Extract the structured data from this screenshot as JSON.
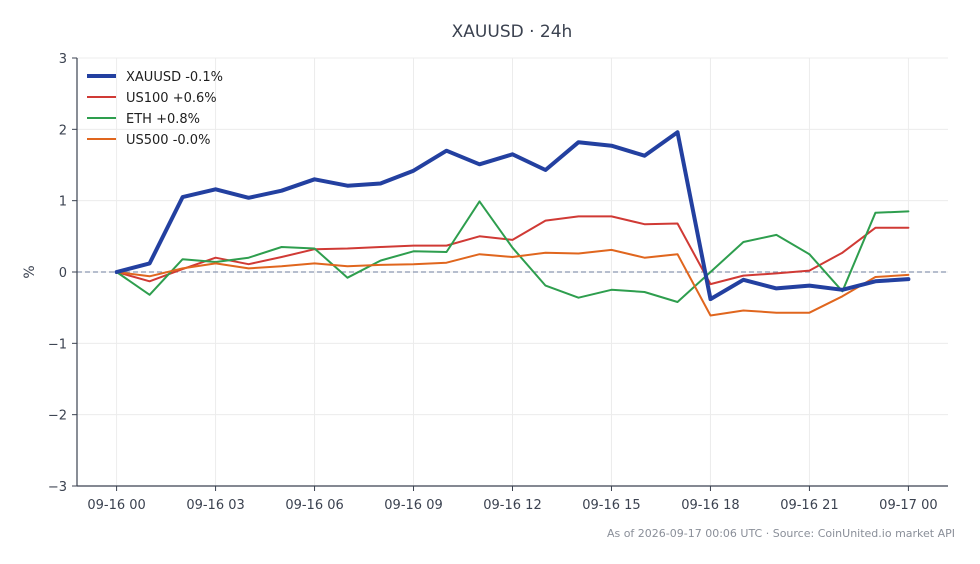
{
  "chart_data": {
    "type": "line",
    "title": "XAUUSD · 24h",
    "xlabel": "",
    "ylabel": "%",
    "ylim": [
      -3,
      3
    ],
    "yticks": [
      3,
      2,
      1,
      0,
      -1,
      -2,
      -3
    ],
    "ytick_labels": [
      "3",
      "2",
      "1",
      "0",
      "−1",
      "−2",
      "−3"
    ],
    "x_range": [
      -1.2,
      25.2
    ],
    "xticks": [
      0,
      3,
      6,
      9,
      12,
      15,
      18,
      21,
      24
    ],
    "xtick_labels": [
      "09-16 00",
      "09-16 03",
      "09-16 06",
      "09-16 09",
      "09-16 12",
      "09-16 15",
      "09-16 18",
      "09-16 21",
      "09-17 00"
    ],
    "x": [
      0,
      1,
      2,
      3,
      4,
      5,
      6,
      7,
      8,
      9,
      10,
      11,
      12,
      13,
      14,
      15,
      16,
      17,
      18,
      19,
      20,
      21,
      22,
      23,
      24
    ],
    "grid": true,
    "zero_line": true,
    "legend_position": "top-left",
    "series": [
      {
        "name": "XAUUSD -0.1%",
        "color": "#2340a0",
        "width": 4,
        "values": [
          0,
          0.12,
          1.05,
          1.16,
          1.04,
          1.14,
          1.3,
          1.21,
          1.24,
          1.42,
          1.7,
          1.51,
          1.65,
          1.43,
          1.82,
          1.77,
          1.63,
          1.96,
          -0.38,
          -0.11,
          -0.23,
          -0.19,
          -0.25,
          -0.13,
          -0.1
        ]
      },
      {
        "name": "US100 +0.6%",
        "color": "#d03a35",
        "width": 2,
        "values": [
          0,
          -0.13,
          0.04,
          0.2,
          0.11,
          0.21,
          0.32,
          0.33,
          0.35,
          0.37,
          0.37,
          0.5,
          0.45,
          0.72,
          0.78,
          0.78,
          0.67,
          0.68,
          -0.17,
          -0.05,
          -0.02,
          0.02,
          0.27,
          0.62,
          0.62
        ]
      },
      {
        "name": "ETH +0.8%",
        "color": "#2e9e4e",
        "width": 2,
        "values": [
          0,
          -0.32,
          0.18,
          0.14,
          0.2,
          0.35,
          0.33,
          -0.08,
          0.16,
          0.29,
          0.28,
          0.99,
          0.34,
          -0.19,
          -0.36,
          -0.25,
          -0.28,
          -0.42,
          0.0,
          0.42,
          0.52,
          0.25,
          -0.27,
          0.83,
          0.85
        ]
      },
      {
        "name": "US500 -0.0%",
        "color": "#e0661e",
        "width": 2,
        "values": [
          0,
          -0.06,
          0.05,
          0.12,
          0.05,
          0.08,
          0.12,
          0.08,
          0.1,
          0.11,
          0.13,
          0.25,
          0.21,
          0.27,
          0.26,
          0.31,
          0.2,
          0.25,
          -0.61,
          -0.54,
          -0.57,
          -0.57,
          -0.34,
          -0.07,
          -0.04
        ]
      }
    ]
  },
  "footer": {
    "text": "As of 2026-09-17 00:06 UTC · Source: CoinUnited.io market API"
  },
  "colors": {
    "axis": "#3b4250",
    "grid": "#ececec",
    "zero_line": "#8a96b0"
  }
}
